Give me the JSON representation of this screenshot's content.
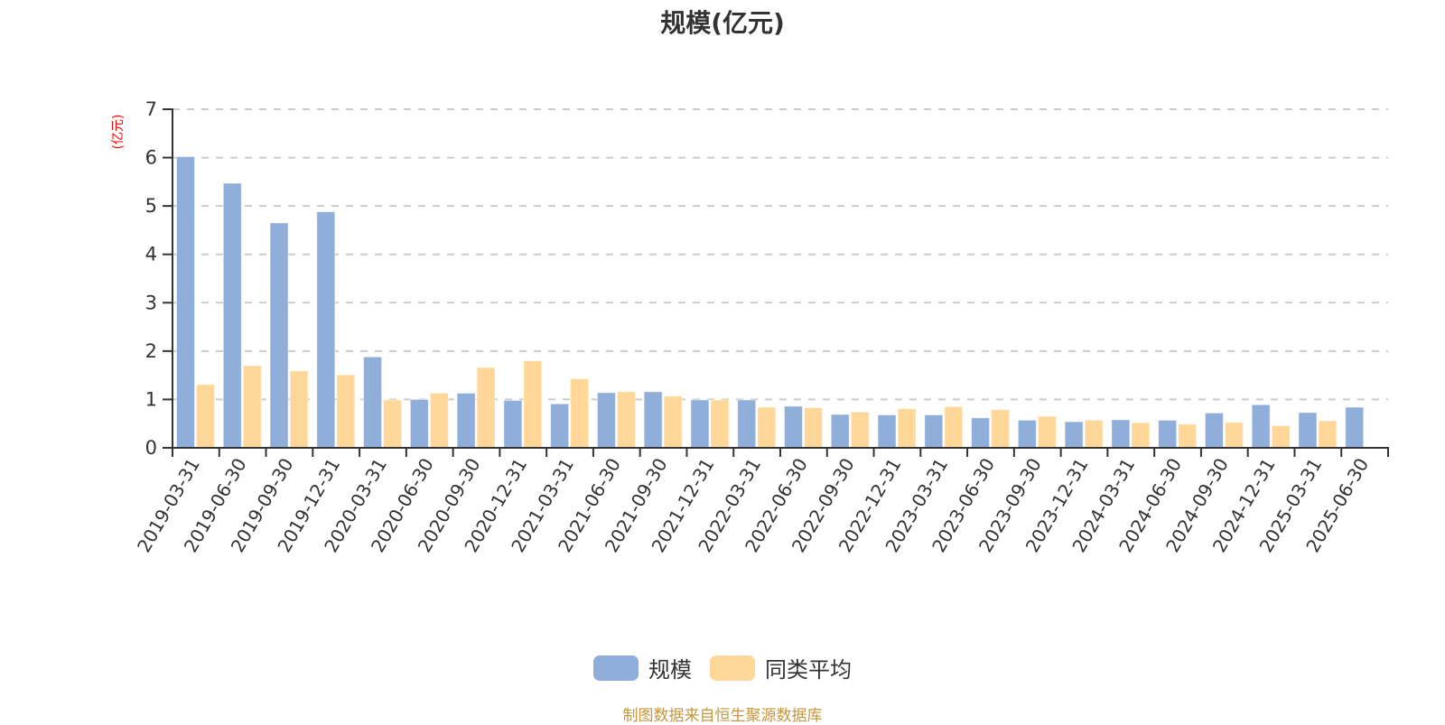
{
  "title": "规模(亿元)",
  "y_unit_label": "(亿元)",
  "colors": {
    "series_scale": "#8FAEDA",
    "series_peer_avg": "#FFD899",
    "axis": "#333333",
    "grid": "#cccccc",
    "y_unit": "#ff0000",
    "footer": "#C8963E"
  },
  "legend": [
    {
      "label": "规模",
      "color": "#8FAEDA"
    },
    {
      "label": "同类平均",
      "color": "#FFD899"
    }
  ],
  "footer": "制图数据来自恒生聚源数据库",
  "chart_data": {
    "type": "bar",
    "title": "规模(亿元)",
    "xlabel": "",
    "ylabel": "(亿元)",
    "ylim": [
      0,
      7
    ],
    "yticks": [
      0,
      1,
      2,
      3,
      4,
      5,
      6,
      7
    ],
    "grid": true,
    "legend_position": "bottom",
    "categories": [
      "2019-03-31",
      "2019-06-30",
      "2019-09-30",
      "2019-12-31",
      "2020-03-31",
      "2020-06-30",
      "2020-09-30",
      "2020-12-31",
      "2021-03-31",
      "2021-06-30",
      "2021-09-30",
      "2021-12-31",
      "2022-03-31",
      "2022-06-30",
      "2022-09-30",
      "2022-12-31",
      "2023-03-31",
      "2023-06-30",
      "2023-09-30",
      "2023-12-31",
      "2024-03-31",
      "2024-06-30",
      "2024-09-30",
      "2024-12-31",
      "2025-03-31",
      "2025-06-30"
    ],
    "series": [
      {
        "name": "规模",
        "values": [
          6.02,
          5.47,
          4.65,
          4.88,
          1.88,
          1.0,
          1.13,
          0.98,
          0.91,
          1.14,
          1.16,
          0.99,
          0.99,
          0.86,
          0.69,
          0.68,
          0.68,
          0.62,
          0.57,
          0.54,
          0.58,
          0.57,
          0.72,
          0.89,
          0.73,
          0.84
        ]
      },
      {
        "name": "同类平均",
        "values": [
          1.31,
          1.7,
          1.59,
          1.51,
          0.99,
          1.13,
          1.66,
          1.8,
          1.43,
          1.16,
          1.07,
          0.99,
          0.84,
          0.83,
          0.74,
          0.81,
          0.85,
          0.79,
          0.65,
          0.57,
          0.52,
          0.49,
          0.53,
          0.46,
          0.56,
          null
        ]
      }
    ]
  }
}
